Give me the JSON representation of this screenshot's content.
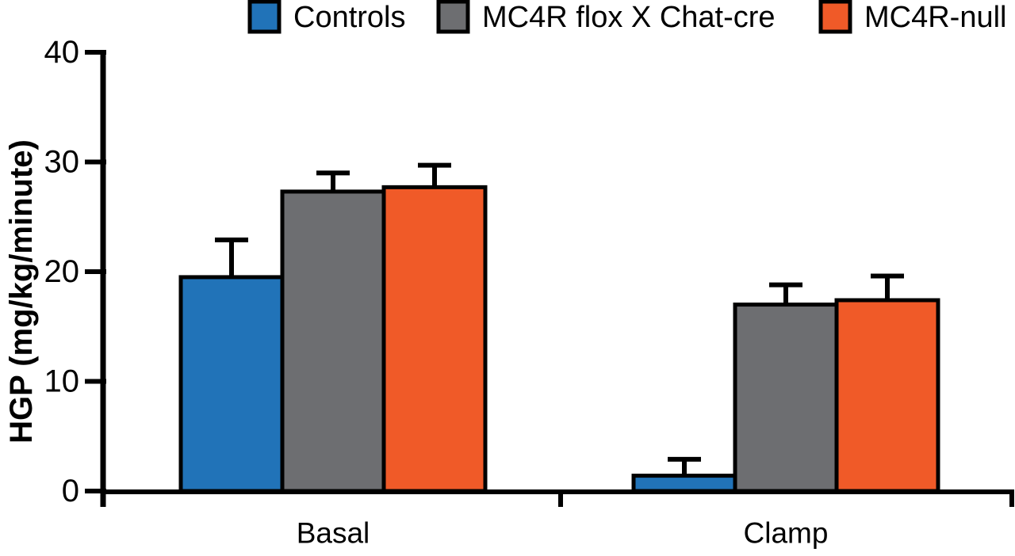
{
  "figure": {
    "background": "#ffffff",
    "axis_color": "#000000",
    "text_color": "#000000"
  },
  "chart_data": {
    "type": "bar",
    "title": "",
    "xlabel": "",
    "ylabel": "HGP (mg/kg/minute)",
    "categories": [
      "Basal",
      "Clamp"
    ],
    "series": [
      {
        "name": "Controls",
        "color": "#2173B8",
        "values": [
          19.5,
          1.4
        ],
        "errors_plus": [
          3.4,
          1.5
        ]
      },
      {
        "name": "MC4R flox X Chat-cre",
        "color": "#6D6E71",
        "values": [
          27.3,
          17.0
        ],
        "errors_plus": [
          1.7,
          1.8
        ]
      },
      {
        "name": "MC4R-null",
        "color": "#F05A28",
        "values": [
          27.7,
          17.4
        ],
        "errors_plus": [
          2.0,
          2.2
        ]
      }
    ],
    "ylim": [
      0,
      40
    ],
    "y_ticks": [
      0,
      10,
      20,
      30,
      40
    ],
    "grid": false,
    "legend_position": "top",
    "bar_border_color": "#000000",
    "error_bar_color": "#000000"
  }
}
